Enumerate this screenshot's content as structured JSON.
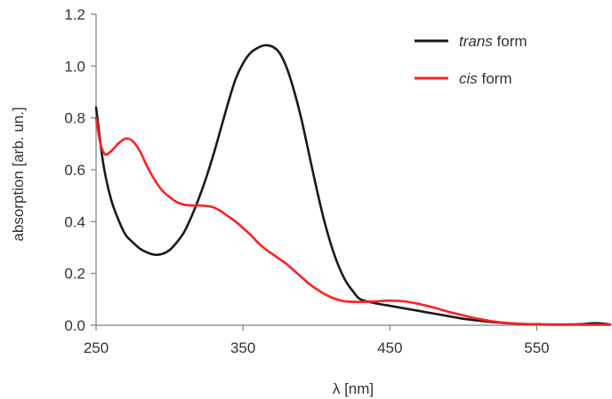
{
  "chart_data": {
    "type": "line",
    "title": "",
    "xlabel": "λ [nm]",
    "ylabel": "absorption [arb. un.]",
    "xlim": [
      250,
      600
    ],
    "ylim": [
      0,
      1.2
    ],
    "xticks": [
      250,
      350,
      450,
      550
    ],
    "xtick_labels": [
      "250",
      "350",
      "450",
      "550"
    ],
    "yticks": [
      0,
      0.2,
      0.4,
      0.6,
      0.8,
      1.0,
      1.2
    ],
    "ytick_labels": [
      "0.0",
      "0.2",
      "0.4",
      "0.6",
      "0.8",
      "1.0",
      "1.2"
    ],
    "grid": false,
    "legend_position": "top-right",
    "legend": [
      {
        "italic": "trans",
        "rest": " form",
        "color": "#1a1a1a"
      },
      {
        "italic": "cis",
        "rest": " form",
        "color": "#ff2020"
      }
    ],
    "series": [
      {
        "name": "trans form",
        "color": "#1a1a1a",
        "x": [
          250,
          255,
          260,
          265,
          270,
          275,
          280,
          285,
          290,
          295,
          300,
          305,
          310,
          315,
          320,
          325,
          330,
          335,
          340,
          345,
          350,
          355,
          360,
          365,
          370,
          375,
          380,
          385,
          390,
          395,
          400,
          405,
          410,
          415,
          420,
          425,
          430,
          440,
          450,
          460,
          470,
          480,
          490,
          500,
          510,
          520,
          530,
          540,
          550,
          560,
          570,
          580,
          590,
          600
        ],
        "y": [
          0.84,
          0.62,
          0.49,
          0.41,
          0.35,
          0.32,
          0.295,
          0.28,
          0.272,
          0.275,
          0.29,
          0.32,
          0.36,
          0.42,
          0.49,
          0.57,
          0.66,
          0.76,
          0.86,
          0.95,
          1.01,
          1.05,
          1.07,
          1.08,
          1.075,
          1.05,
          0.99,
          0.9,
          0.79,
          0.66,
          0.53,
          0.41,
          0.31,
          0.23,
          0.17,
          0.13,
          0.1,
          0.085,
          0.075,
          0.065,
          0.055,
          0.045,
          0.035,
          0.025,
          0.018,
          0.012,
          0.008,
          0.005,
          0.004,
          0.003,
          0.003,
          0.004,
          0.008,
          0.003
        ]
      },
      {
        "name": "cis form",
        "color": "#ff2020",
        "x": [
          250,
          253,
          256,
          260,
          265,
          270,
          275,
          280,
          285,
          290,
          295,
          300,
          305,
          310,
          315,
          320,
          325,
          330,
          335,
          340,
          345,
          350,
          355,
          360,
          365,
          370,
          375,
          380,
          385,
          390,
          395,
          400,
          405,
          410,
          415,
          420,
          430,
          440,
          450,
          460,
          470,
          480,
          490,
          500,
          510,
          520,
          530,
          540,
          550,
          560,
          570,
          580,
          590,
          600
        ],
        "y": [
          0.8,
          0.7,
          0.66,
          0.67,
          0.7,
          0.72,
          0.71,
          0.67,
          0.61,
          0.56,
          0.52,
          0.495,
          0.475,
          0.465,
          0.462,
          0.462,
          0.46,
          0.455,
          0.44,
          0.42,
          0.4,
          0.375,
          0.35,
          0.32,
          0.295,
          0.275,
          0.255,
          0.235,
          0.21,
          0.185,
          0.16,
          0.14,
          0.122,
          0.108,
          0.098,
          0.092,
          0.09,
          0.092,
          0.095,
          0.092,
          0.082,
          0.068,
          0.052,
          0.038,
          0.025,
          0.015,
          0.009,
          0.005,
          0.003,
          0.002,
          0.002,
          0.002,
          0.002,
          0.002
        ]
      }
    ]
  }
}
